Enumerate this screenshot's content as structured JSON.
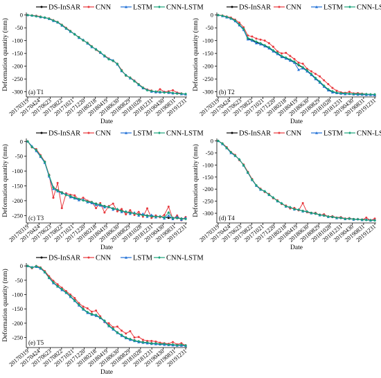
{
  "colors": {
    "DS-InSAR": "#000000",
    "CNN": "#e8383d",
    "LSTM": "#1f6fd6",
    "CNN-LSTM": "#1aa37a",
    "axis": "#000000"
  },
  "markers": {
    "DS-InSAR": "circle",
    "CNN": "circle",
    "LSTM": "triangle",
    "CNN-LSTM": "diamond"
  },
  "x_ticks": [
    "20170319",
    "20170424",
    "20170623",
    "20170822",
    "20171021",
    "20171220",
    "20180218",
    "20180419",
    "20180630",
    "20180829",
    "20181028",
    "20181231",
    "20190430",
    "20190831",
    "20191231"
  ],
  "ylabel": "Deformation quantity (mm)",
  "xlabel": "Date",
  "chart_data": [
    {
      "type": "line",
      "panel": "(a) T1",
      "title": "",
      "legend": [
        "DS-InSAR",
        "CNN",
        "LSTM",
        "CNN-LSTM"
      ],
      "legend_position": "top",
      "xlabel": "Date",
      "ylabel": "Deformation quantity (mm)",
      "ylim": [
        -320,
        10
      ],
      "yticks": [
        0,
        -50,
        -100,
        -150,
        -200,
        -250,
        -300
      ],
      "grid": false,
      "series": [
        {
          "name": "DS-InSAR",
          "values": [
            0,
            -2,
            -4,
            -8,
            -10,
            -14,
            -22,
            -28,
            -40,
            -52,
            -64,
            -75,
            -88,
            -98,
            -110,
            -124,
            -134,
            -146,
            -160,
            -172,
            -178,
            -192,
            -218,
            -235,
            -246,
            -258,
            -272,
            -285,
            -293,
            -298,
            -300,
            -301,
            -302,
            -303,
            -305,
            -306,
            -308,
            -309
          ]
        },
        {
          "name": "CNN",
          "values": [
            0,
            -1,
            -3,
            -6,
            -11,
            -13,
            -20,
            -27,
            -38,
            -50,
            -62,
            -76,
            -86,
            -100,
            -108,
            -122,
            -136,
            -148,
            -158,
            -170,
            -180,
            -190,
            -215,
            -237,
            -244,
            -256,
            -270,
            -283,
            -291,
            -295,
            -302,
            -290,
            -300,
            -298,
            -294,
            -303,
            -306,
            -310
          ]
        },
        {
          "name": "LSTM",
          "values": [
            0,
            -2,
            -4,
            -8,
            -10,
            -15,
            -23,
            -29,
            -41,
            -53,
            -65,
            -74,
            -89,
            -97,
            -111,
            -125,
            -133,
            -147,
            -161,
            -171,
            -177,
            -193,
            -219,
            -234,
            -247,
            -257,
            -273,
            -286,
            -292,
            -299,
            -301,
            -302,
            -301,
            -304,
            -306,
            -305,
            -309,
            -310
          ]
        },
        {
          "name": "CNN-LSTM",
          "values": [
            0,
            -2,
            -5,
            -7,
            -10,
            -14,
            -21,
            -28,
            -39,
            -52,
            -63,
            -76,
            -87,
            -99,
            -109,
            -123,
            -135,
            -145,
            -159,
            -173,
            -179,
            -191,
            -217,
            -236,
            -245,
            -259,
            -271,
            -284,
            -294,
            -297,
            -299,
            -300,
            -303,
            -302,
            -304,
            -307,
            -307,
            -308
          ]
        }
      ]
    },
    {
      "type": "line",
      "panel": "(b) T2",
      "title": "",
      "legend": [
        "DS-InSAR",
        "CNN",
        "LSTM",
        "CNN-LSTM"
      ],
      "legend_position": "top",
      "xlabel": "Date",
      "ylabel": "Deformation quantity (mm)",
      "ylim": [
        -320,
        10
      ],
      "yticks": [
        0,
        -50,
        -100,
        -150,
        -200,
        -250,
        -300
      ],
      "grid": false,
      "series": [
        {
          "name": "DS-InSAR",
          "values": [
            0,
            -3,
            -8,
            -12,
            -22,
            -38,
            -55,
            -92,
            -98,
            -106,
            -112,
            -120,
            -128,
            -140,
            -150,
            -162,
            -168,
            -176,
            -184,
            -196,
            -206,
            -218,
            -232,
            -248,
            -262,
            -278,
            -292,
            -300,
            -304,
            -306,
            -307,
            -308,
            -309,
            -309,
            -310,
            -310,
            -311,
            -311
          ]
        },
        {
          "name": "CNN",
          "values": [
            0,
            -2,
            -6,
            -10,
            -18,
            -30,
            -48,
            -80,
            -84,
            -92,
            -96,
            -100,
            -110,
            -124,
            -142,
            -150,
            -148,
            -160,
            -172,
            -186,
            -190,
            -210,
            -220,
            -230,
            -240,
            -255,
            -270,
            -285,
            -296,
            -302,
            -304,
            -300,
            -306,
            -305,
            -307,
            -309,
            -310,
            -312
          ]
        },
        {
          "name": "LSTM",
          "values": [
            0,
            -4,
            -9,
            -14,
            -24,
            -40,
            -58,
            -95,
            -100,
            -110,
            -114,
            -122,
            -130,
            -142,
            -152,
            -164,
            -170,
            -178,
            -186,
            -214,
            -208,
            -220,
            -234,
            -250,
            -264,
            -280,
            -294,
            -302,
            -305,
            -307,
            -309,
            -308,
            -310,
            -311,
            -311,
            -312,
            -312,
            -313
          ]
        },
        {
          "name": "CNN-LSTM",
          "values": [
            0,
            -3,
            -7,
            -13,
            -21,
            -37,
            -54,
            -90,
            -96,
            -104,
            -110,
            -118,
            -126,
            -138,
            -148,
            -160,
            -166,
            -174,
            -182,
            -194,
            -204,
            -216,
            -230,
            -246,
            -260,
            -276,
            -290,
            -298,
            -303,
            -305,
            -306,
            -307,
            -308,
            -308,
            -309,
            -309,
            -310,
            -310
          ]
        }
      ]
    },
    {
      "type": "line",
      "panel": "(c) T3",
      "title": "",
      "legend": [
        "DS-InSAR",
        "CNN",
        "LSTM",
        "CNN-LSTM"
      ],
      "legend_position": "top",
      "xlabel": "Date",
      "ylabel": "Deformation quantity (mm)",
      "ylim": [
        -275,
        10
      ],
      "yticks": [
        0,
        -50,
        -100,
        -150,
        -200,
        -250
      ],
      "grid": false,
      "series": [
        {
          "name": "DS-InSAR",
          "values": [
            0,
            -18,
            -30,
            -50,
            -70,
            -115,
            -155,
            -165,
            -172,
            -180,
            -185,
            -190,
            -195,
            -198,
            -202,
            -206,
            -210,
            -214,
            -218,
            -222,
            -226,
            -230,
            -234,
            -238,
            -240,
            -244,
            -246,
            -248,
            -250,
            -252,
            -253,
            -254,
            -256,
            -258,
            -258,
            -259,
            -260,
            -261
          ]
        },
        {
          "name": "CNN",
          "values": [
            0,
            -20,
            -26,
            -46,
            -68,
            -112,
            -190,
            -140,
            -225,
            -175,
            -180,
            -182,
            -196,
            -190,
            -200,
            -204,
            -225,
            -208,
            -240,
            -218,
            -210,
            -236,
            -228,
            -246,
            -232,
            -248,
            -238,
            -254,
            -226,
            -258,
            -250,
            -256,
            -248,
            -220,
            -262,
            -250,
            -266,
            -255
          ]
        },
        {
          "name": "LSTM",
          "values": [
            0,
            -16,
            -32,
            -52,
            -72,
            -118,
            -160,
            -168,
            -175,
            -178,
            -188,
            -192,
            -198,
            -196,
            -205,
            -208,
            -214,
            -216,
            -222,
            -220,
            -230,
            -228,
            -238,
            -236,
            -244,
            -240,
            -250,
            -244,
            -254,
            -248,
            -256,
            -252,
            -260,
            -250,
            -262,
            -254,
            -264,
            -258
          ]
        },
        {
          "name": "CNN-LSTM",
          "values": [
            0,
            -19,
            -29,
            -49,
            -69,
            -114,
            -156,
            -166,
            -173,
            -181,
            -184,
            -191,
            -194,
            -199,
            -203,
            -205,
            -211,
            -213,
            -219,
            -221,
            -227,
            -229,
            -235,
            -237,
            -241,
            -243,
            -247,
            -249,
            -251,
            -253,
            -254,
            -253,
            -257,
            -240,
            -259,
            -258,
            -261,
            -262
          ]
        }
      ]
    },
    {
      "type": "line",
      "panel": "(d) T4",
      "title": "",
      "legend": [
        "DS-InSAR",
        "CNN",
        "LSTM",
        "CNN-LSTM"
      ],
      "legend_position": "top",
      "xlabel": "Date",
      "ylabel": "Deformation quantity (mm)",
      "ylim": [
        -340,
        10
      ],
      "yticks": [
        0,
        -50,
        -100,
        -150,
        -200,
        -250,
        -300
      ],
      "grid": false,
      "series": [
        {
          "name": "DS-InSAR",
          "values": [
            0,
            -12,
            -28,
            -48,
            -60,
            -78,
            -100,
            -130,
            -160,
            -185,
            -200,
            -210,
            -222,
            -236,
            -248,
            -260,
            -270,
            -276,
            -282,
            -286,
            -290,
            -294,
            -298,
            -302,
            -306,
            -310,
            -313,
            -316,
            -318,
            -320,
            -322,
            -323,
            -324,
            -325,
            -326,
            -327,
            -328,
            -329
          ]
        },
        {
          "name": "CNN",
          "values": [
            0,
            -10,
            -26,
            -46,
            -58,
            -80,
            -98,
            -128,
            -158,
            -184,
            -198,
            -212,
            -220,
            -238,
            -246,
            -262,
            -268,
            -280,
            -278,
            -288,
            -258,
            -296,
            -300,
            -298,
            -308,
            -304,
            -314,
            -312,
            -318,
            -316,
            -322,
            -320,
            -326,
            -324,
            -328,
            -318,
            -330,
            -322
          ]
        },
        {
          "name": "LSTM",
          "values": [
            0,
            -13,
            -30,
            -50,
            -62,
            -76,
            -102,
            -132,
            -162,
            -186,
            -202,
            -208,
            -224,
            -234,
            -250,
            -258,
            -272,
            -274,
            -284,
            -284,
            -292,
            -292,
            -300,
            -300,
            -308,
            -308,
            -315,
            -314,
            -320,
            -318,
            -324,
            -321,
            -326,
            -324,
            -328,
            -326,
            -330,
            -328
          ]
        },
        {
          "name": "CNN-LSTM",
          "values": [
            0,
            -11,
            -29,
            -47,
            -61,
            -77,
            -101,
            -131,
            -161,
            -184,
            -201,
            -209,
            -223,
            -235,
            -249,
            -259,
            -271,
            -275,
            -283,
            -285,
            -291,
            -293,
            -299,
            -301,
            -307,
            -309,
            -314,
            -315,
            -319,
            -319,
            -323,
            -322,
            -325,
            -325,
            -327,
            -328,
            -329,
            -330
          ]
        }
      ]
    },
    {
      "type": "line",
      "panel": "(e) T5",
      "title": "",
      "legend": [
        "DS-InSAR",
        "CNN",
        "LSTM",
        "CNN-LSTM"
      ],
      "legend_position": "top",
      "xlabel": "Date",
      "ylabel": "Deformation quantity (mm)",
      "ylim": [
        -285,
        10
      ],
      "yticks": [
        0,
        -50,
        -100,
        -150,
        -200,
        -250
      ],
      "grid": false,
      "series": [
        {
          "name": "DS-InSAR",
          "values": [
            0,
            -5,
            -2,
            -8,
            -20,
            -40,
            -58,
            -70,
            -82,
            -92,
            -106,
            -120,
            -136,
            -150,
            -162,
            -168,
            -172,
            -180,
            -192,
            -208,
            -220,
            -232,
            -242,
            -250,
            -256,
            -260,
            -264,
            -266,
            -268,
            -270,
            -271,
            -272,
            -273,
            -274,
            -275,
            -276,
            -276,
            -277
          ]
        },
        {
          "name": "CNN",
          "values": [
            0,
            -8,
            0,
            -5,
            -18,
            -36,
            -52,
            -64,
            -76,
            -88,
            -100,
            -112,
            -130,
            -142,
            -148,
            -160,
            -156,
            -176,
            -196,
            -200,
            -214,
            -212,
            -226,
            -236,
            -228,
            -250,
            -248,
            -258,
            -262,
            -262,
            -264,
            -268,
            -270,
            -272,
            -266,
            -274,
            -270,
            -278
          ]
        },
        {
          "name": "LSTM",
          "values": [
            0,
            -4,
            -3,
            -9,
            -22,
            -42,
            -60,
            -72,
            -84,
            -94,
            -108,
            -122,
            -138,
            -152,
            -164,
            -170,
            -174,
            -182,
            -194,
            -210,
            -222,
            -234,
            -244,
            -252,
            -258,
            -262,
            -266,
            -268,
            -270,
            -272,
            -273,
            -274,
            -275,
            -276,
            -277,
            -278,
            -278,
            -279
          ]
        },
        {
          "name": "CNN-LSTM",
          "values": [
            0,
            -6,
            -1,
            -7,
            -21,
            -41,
            -57,
            -71,
            -81,
            -93,
            -105,
            -121,
            -135,
            -151,
            -161,
            -169,
            -171,
            -181,
            -191,
            -209,
            -219,
            -233,
            -241,
            -251,
            -255,
            -261,
            -263,
            -267,
            -267,
            -271,
            -270,
            -273,
            -272,
            -275,
            -274,
            -277,
            -275,
            -278
          ]
        }
      ]
    }
  ]
}
